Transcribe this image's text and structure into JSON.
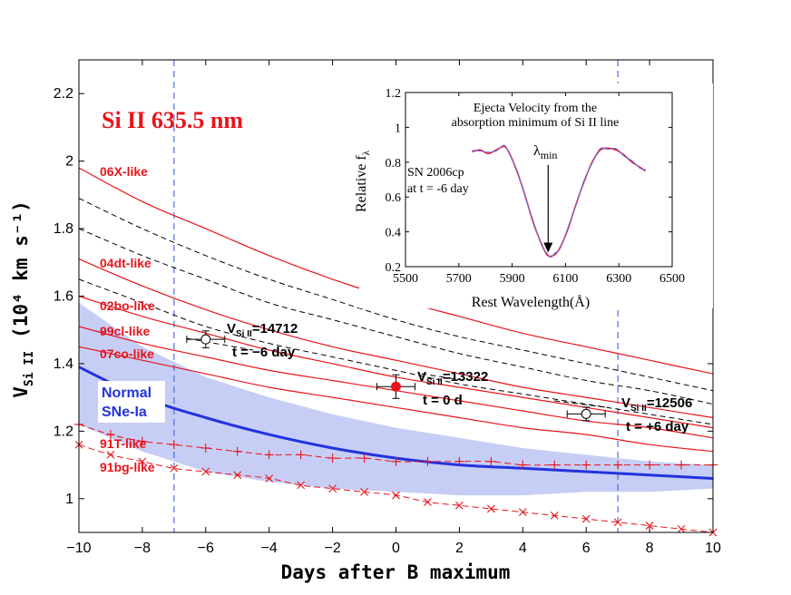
{
  "chart_data": {
    "type": "line",
    "title": "Si II 635.5 nm",
    "xlabel": "Days after B maximum",
    "ylabel": "V",
    "ylabel_sub": "Si II",
    "ylabel_unit": "(10⁴ km s⁻¹)",
    "xlim": [
      -10,
      10
    ],
    "ylim": [
      0.9,
      2.3
    ],
    "xticks": [
      "−10",
      "−8",
      "−6",
      "−4",
      "−2",
      "0",
      "2",
      "4",
      "6",
      "8",
      "10"
    ],
    "yticks": [
      "1",
      "1.2",
      "1.4",
      "1.6",
      "1.8",
      "2",
      "2.2"
    ],
    "vlines": [
      -7,
      7
    ],
    "red_curves": [
      {
        "name": "06X-like",
        "x": [
          -10,
          -8,
          -6,
          -4,
          -2,
          0,
          2,
          4,
          6,
          8,
          10
        ],
        "y": [
          1.98,
          1.88,
          1.8,
          1.72,
          1.65,
          1.59,
          1.54,
          1.49,
          1.45,
          1.41,
          1.37
        ]
      },
      {
        "name": "04dt-like",
        "x": [
          -10,
          -8,
          -6,
          -4,
          -2,
          0,
          2,
          4,
          6,
          8,
          10
        ],
        "y": [
          1.71,
          1.63,
          1.56,
          1.5,
          1.45,
          1.41,
          1.37,
          1.33,
          1.3,
          1.27,
          1.24
        ]
      },
      {
        "name": "02bo-like",
        "x": [
          -10,
          -8,
          -6,
          -4,
          -2,
          0,
          2,
          4,
          6,
          8,
          10
        ],
        "y": [
          1.6,
          1.54,
          1.49,
          1.44,
          1.4,
          1.36,
          1.33,
          1.3,
          1.27,
          1.24,
          1.21
        ]
      },
      {
        "name": "99cl-like",
        "x": [
          -10,
          -8,
          -6,
          -4,
          -2,
          0,
          2,
          4,
          6,
          8,
          10
        ],
        "y": [
          1.51,
          1.46,
          1.42,
          1.38,
          1.35,
          1.32,
          1.29,
          1.26,
          1.23,
          1.21,
          1.18
        ]
      },
      {
        "name": "07co-like",
        "x": [
          -10,
          -8,
          -6,
          -4,
          -2,
          0,
          2,
          4,
          6,
          8,
          10
        ],
        "y": [
          1.45,
          1.41,
          1.37,
          1.33,
          1.3,
          1.27,
          1.24,
          1.21,
          1.19,
          1.16,
          1.14
        ]
      }
    ],
    "black_dashed": [
      {
        "x": [
          -10,
          -8,
          -6,
          -4,
          -2,
          0,
          2,
          4,
          6,
          8,
          10
        ],
        "y": [
          1.89,
          1.8,
          1.72,
          1.65,
          1.59,
          1.53,
          1.48,
          1.44,
          1.4,
          1.36,
          1.32
        ]
      },
      {
        "x": [
          -10,
          -8,
          -6,
          -4,
          -2,
          0,
          2,
          4,
          6,
          8,
          10
        ],
        "y": [
          1.8,
          1.72,
          1.65,
          1.58,
          1.53,
          1.48,
          1.43,
          1.39,
          1.35,
          1.32,
          1.28
        ]
      },
      {
        "x": [
          -10,
          -8,
          -6,
          -4,
          -2,
          0,
          2,
          4,
          6,
          8,
          10
        ],
        "y": [
          1.65,
          1.58,
          1.51,
          1.46,
          1.42,
          1.38,
          1.34,
          1.31,
          1.28,
          1.25,
          1.22
        ]
      }
    ],
    "normal": {
      "name": "Normal SNe-Ia",
      "x": [
        -10,
        -8,
        -6,
        -4,
        -2,
        0,
        2,
        4,
        6,
        8,
        10
      ],
      "y": [
        1.39,
        1.3,
        1.24,
        1.19,
        1.15,
        1.12,
        1.1,
        1.09,
        1.08,
        1.07,
        1.06
      ],
      "upper": [
        1.58,
        1.45,
        1.36,
        1.3,
        1.25,
        1.21,
        1.18,
        1.15,
        1.13,
        1.11,
        1.1
      ],
      "lower": [
        1.22,
        1.14,
        1.08,
        1.05,
        1.03,
        1.02,
        1.01,
        1.01,
        1.02,
        1.02,
        1.03
      ]
    },
    "t91T": {
      "name": "91T-like",
      "marker": "+",
      "x": [
        -10,
        -9,
        -8,
        -7,
        -6,
        -5,
        -4,
        -3,
        -2,
        -1,
        0,
        1,
        2,
        3,
        4,
        5,
        6,
        7,
        8,
        9,
        10
      ],
      "y": [
        1.22,
        1.19,
        1.17,
        1.16,
        1.15,
        1.14,
        1.13,
        1.13,
        1.12,
        1.12,
        1.11,
        1.11,
        1.11,
        1.11,
        1.1,
        1.1,
        1.1,
        1.1,
        1.1,
        1.1,
        1.1
      ]
    },
    "t91bg": {
      "name": "91bg-like",
      "marker": "x",
      "x": [
        -10,
        -9,
        -8,
        -7,
        -6,
        -5,
        -4,
        -3,
        -2,
        -1,
        0,
        1,
        2,
        3,
        4,
        5,
        6,
        7,
        8,
        9,
        10
      ],
      "y": [
        1.16,
        1.13,
        1.11,
        1.09,
        1.08,
        1.07,
        1.06,
        1.04,
        1.03,
        1.02,
        1.01,
        0.99,
        0.98,
        0.97,
        0.96,
        0.95,
        0.94,
        0.93,
        0.92,
        0.91,
        0.9
      ]
    },
    "points": [
      {
        "x": -6,
        "y": 1.472,
        "xerr": 0.6,
        "yerr": 0.025,
        "filled": false,
        "vlabel_main": "V",
        "vlabel_sub": "Si II",
        "vlabel_val": "=14712",
        "tlabel": "t = −6 day"
      },
      {
        "x": 0,
        "y": 1.332,
        "xerr": 0.6,
        "yerr": 0.035,
        "filled": true,
        "vlabel_main": "V",
        "vlabel_sub": "Si II",
        "vlabel_val": "=13322",
        "tlabel": "t = 0 d"
      },
      {
        "x": 6,
        "y": 1.251,
        "xerr": 0.6,
        "yerr": 0.02,
        "filled": false,
        "vlabel_main": "V",
        "vlabel_sub": "Si II",
        "vlabel_val": "=12506",
        "tlabel": "t = +6 day"
      }
    ],
    "dashed_segments": [
      {
        "x": [
          -6.6,
          -4.5
        ],
        "y": [
          1.475,
          1.44
        ]
      },
      {
        "x": [
          0.8,
          2.2
        ],
        "y": [
          1.37,
          1.35
        ]
      },
      {
        "x": [
          5.0,
          6.7
        ],
        "y": [
          1.29,
          1.27
        ]
      }
    ],
    "inset": {
      "title_line1": "Ejecta Velocity from the",
      "title_line2": "absorption minimum of Si II line",
      "object": "SN 2006cp",
      "epoch": "at t = -6 day",
      "xlabel": "Rest Wavelength(Å)",
      "ylabel": "Relative f",
      "ylabel_sub": "λ",
      "marker_label": "λ",
      "marker_label_sub": "min",
      "xlim": [
        5500,
        6500
      ],
      "ylim": [
        0.2,
        1.2
      ],
      "xticks": [
        "5500",
        "5700",
        "5900",
        "6100",
        "6300",
        "6500"
      ],
      "yticks": [
        "0.2",
        "0.4",
        "0.6",
        "0.8",
        "1",
        "1.2"
      ],
      "min_wavelength": 6035,
      "spectrum": {
        "x": [
          5750,
          5780,
          5810,
          5840,
          5870,
          5890,
          5920,
          5950,
          5980,
          6010,
          6030,
          6045,
          6060,
          6080,
          6110,
          6140,
          6170,
          6200,
          6230,
          6260,
          6290,
          6320,
          6350,
          6380,
          6400
        ],
        "y": [
          0.86,
          0.87,
          0.85,
          0.87,
          0.89,
          0.85,
          0.74,
          0.6,
          0.45,
          0.33,
          0.27,
          0.26,
          0.27,
          0.31,
          0.42,
          0.56,
          0.69,
          0.8,
          0.87,
          0.88,
          0.87,
          0.84,
          0.8,
          0.77,
          0.75
        ]
      }
    }
  },
  "colors": {
    "red": "#e8141c",
    "blue": "#2233dd",
    "band": "#c7cef5",
    "vline": "#4a6fe0",
    "inset_blue": "#6677ee"
  }
}
